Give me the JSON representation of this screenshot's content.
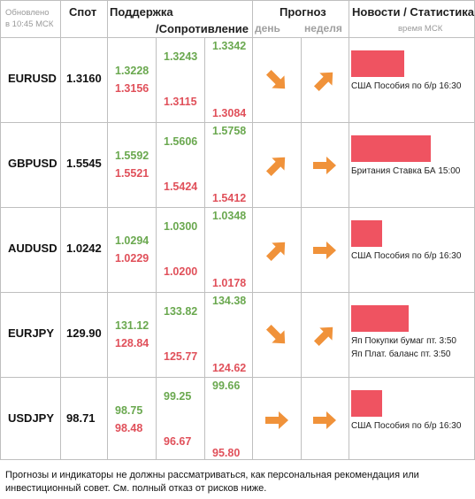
{
  "header": {
    "updated_line1": "Обновлено",
    "updated_line2": "в 10:45 МСК",
    "spot": "Спот",
    "support": "Поддержка",
    "resistance": "/Сопротивление",
    "forecast": "Прогноз",
    "day": "день",
    "week": "неделя",
    "news": "Новости / Статистика",
    "msk_time": "время МСК"
  },
  "rows": [
    {
      "pair": "EURUSD",
      "spot": "1.3160",
      "s1_g": "1.3228",
      "s1_r": "1.3156",
      "s2_g": "1.3243",
      "s2_r": "1.3115",
      "s3_g": "1.3342",
      "s3_r": "1.3084",
      "day_arrow": "down-right-arrow",
      "week_arrow": "up-right-arrow",
      "news_level": 0.6,
      "news_lines": [
        "США Пособия по б/р 16:30"
      ]
    },
    {
      "pair": "GBPUSD",
      "spot": "1.5545",
      "s1_g": "1.5592",
      "s1_r": "1.5521",
      "s2_g": "1.5606",
      "s2_r": "1.5424",
      "s3_g": "1.5758",
      "s3_r": "1.5412",
      "day_arrow": "up-right-arrow",
      "week_arrow": "right-arrow",
      "news_level": 0.9,
      "news_lines": [
        "Британия Ставка БА 15:00"
      ]
    },
    {
      "pair": "AUDUSD",
      "spot": "1.0242",
      "s1_g": "1.0294",
      "s1_r": "1.0229",
      "s2_g": "1.0300",
      "s2_r": "1.0200",
      "s3_g": "1.0348",
      "s3_r": "1.0178",
      "day_arrow": "up-right-arrow",
      "week_arrow": "right-arrow",
      "news_level": 0.35,
      "news_lines": [
        "США Пособия по б/р 16:30"
      ]
    },
    {
      "pair": "EURJPY",
      "spot": "129.90",
      "s1_g": "131.12",
      "s1_r": "128.84",
      "s2_g": "133.82",
      "s2_r": "125.77",
      "s3_g": "134.38",
      "s3_r": "124.62",
      "day_arrow": "down-right-arrow",
      "week_arrow": "up-right-arrow",
      "news_level": 0.65,
      "news_lines": [
        "Яп Покупки бумаг пт. 3:50",
        "Яп Плат. баланс пт. 3:50"
      ]
    },
    {
      "pair": "USDJPY",
      "spot": "98.71",
      "s1_g": "98.75",
      "s1_r": "98.48",
      "s2_g": "99.25",
      "s2_r": "96.67",
      "s3_g": "99.66",
      "s3_r": "95.80",
      "day_arrow": "right-arrow",
      "week_arrow": "right-arrow",
      "news_level": 0.35,
      "news_lines": [
        "США Пособия по б/р 16:30"
      ]
    }
  ],
  "colors": {
    "green": "#6aa84f",
    "red": "#e0505a",
    "arrow": "#f0923a",
    "news_bar": "#ef5361"
  },
  "disclaimer": "Прогнозы и индикаторы не должны рассматриваться, как персональная рекомендация или инвестиционный совет. См. полный отказ от рисков ниже."
}
